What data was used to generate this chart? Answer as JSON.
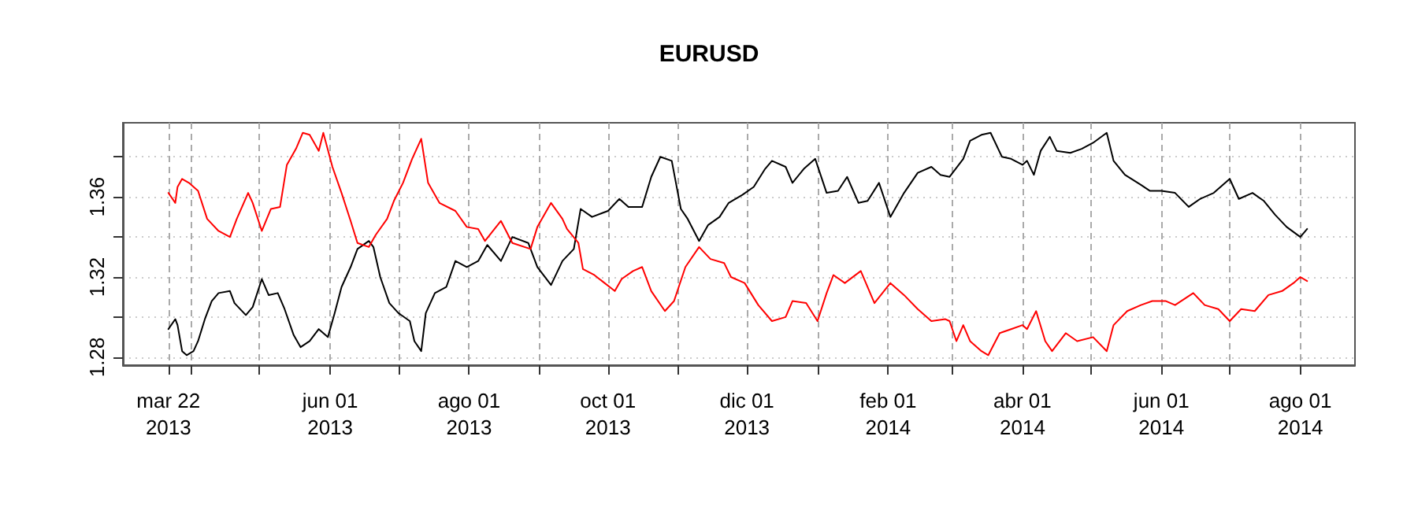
{
  "chart_data": {
    "type": "line",
    "title": "EURUSD",
    "xlim": [
      "2013-03-02",
      "2014-08-25"
    ],
    "xticks": [
      {
        "value": "2013-03-22",
        "label": "mar 22\n2013"
      },
      {
        "value": "2013-04-01",
        "label": null
      },
      {
        "value": "2013-05-01",
        "label": null
      },
      {
        "value": "2013-06-01",
        "label": "jun 01\n2013"
      },
      {
        "value": "2013-07-01",
        "label": null
      },
      {
        "value": "2013-08-01",
        "label": "ago 01\n2013"
      },
      {
        "value": "2013-09-01",
        "label": null
      },
      {
        "value": "2013-10-01",
        "label": "oct 01\n2013"
      },
      {
        "value": "2013-11-01",
        "label": null
      },
      {
        "value": "2013-12-01",
        "label": "dic 01\n2013"
      },
      {
        "value": "2014-01-01",
        "label": null
      },
      {
        "value": "2014-02-01",
        "label": "feb 01\n2014"
      },
      {
        "value": "2014-03-01",
        "label": null
      },
      {
        "value": "2014-04-01",
        "label": "abr 01\n2014"
      },
      {
        "value": "2014-05-01",
        "label": null
      },
      {
        "value": "2014-06-01",
        "label": "jun 01\n2014"
      },
      {
        "value": "2014-07-01",
        "label": null
      },
      {
        "value": "2014-08-01",
        "label": "ago 01\n2014"
      }
    ],
    "ylim": [
      1.276,
      1.397
    ],
    "yticks": [
      1.28,
      {
        "value": 1.3,
        "label": null
      },
      1.32,
      {
        "value": 1.34,
        "label": null
      },
      1.36,
      {
        "value": 1.38,
        "label": null
      }
    ],
    "grid": true,
    "line_style": "solid",
    "marker": "none",
    "series": [
      {
        "color": "#000000",
        "x": [
          "2013-03-22",
          "2013-03-25",
          "2013-03-26",
          "2013-03-28",
          "2013-03-30",
          "2013-04-02",
          "2013-04-04",
          "2013-04-07",
          "2013-04-10",
          "2013-04-13",
          "2013-04-18",
          "2013-04-20",
          "2013-04-25",
          "2013-04-28",
          "2013-05-02",
          "2013-05-05",
          "2013-05-09",
          "2013-05-12",
          "2013-05-16",
          "2013-05-19",
          "2013-05-23",
          "2013-05-27",
          "2013-05-31",
          "2013-06-03",
          "2013-06-06",
          "2013-06-10",
          "2013-06-13",
          "2013-06-18",
          "2013-06-20",
          "2013-06-23",
          "2013-06-27",
          "2013-07-01",
          "2013-07-06",
          "2013-07-08",
          "2013-07-11",
          "2013-07-13",
          "2013-07-17",
          "2013-07-22",
          "2013-07-26",
          "2013-07-31",
          "2013-08-05",
          "2013-08-09",
          "2013-08-15",
          "2013-08-20",
          "2013-08-27",
          "2013-08-31",
          "2013-09-06",
          "2013-09-11",
          "2013-09-16",
          "2013-09-19",
          "2013-09-24",
          "2013-10-01",
          "2013-10-06",
          "2013-10-10",
          "2013-10-16",
          "2013-10-20",
          "2013-10-24",
          "2013-10-29",
          "2013-11-02",
          "2013-11-05",
          "2013-11-10",
          "2013-11-14",
          "2013-11-19",
          "2013-11-23",
          "2013-11-29",
          "2013-12-04",
          "2013-12-09",
          "2013-12-12",
          "2013-12-18",
          "2013-12-21",
          "2013-12-26",
          "2013-12-31",
          "2014-01-05",
          "2014-01-10",
          "2014-01-14",
          "2014-01-19",
          "2014-01-23",
          "2014-01-28",
          "2014-02-02",
          "2014-02-08",
          "2014-02-14",
          "2014-02-20",
          "2014-02-24",
          "2014-02-28",
          "2014-03-06",
          "2014-03-09",
          "2014-03-14",
          "2014-03-18",
          "2014-03-23",
          "2014-03-27",
          "2014-04-01",
          "2014-04-03",
          "2014-04-06",
          "2014-04-09",
          "2014-04-13",
          "2014-04-16",
          "2014-04-22",
          "2014-04-27",
          "2014-05-02",
          "2014-05-08",
          "2014-05-11",
          "2014-05-16",
          "2014-05-23",
          "2014-05-27",
          "2014-06-01",
          "2014-06-07",
          "2014-06-13",
          "2014-06-18",
          "2014-06-24",
          "2014-07-01",
          "2014-07-05",
          "2014-07-11",
          "2014-07-16",
          "2014-07-21",
          "2014-07-26",
          "2014-08-01",
          "2014-08-04"
        ],
        "values": [
          1.294,
          1.299,
          1.296,
          1.283,
          1.281,
          1.283,
          1.288,
          1.299,
          1.308,
          1.312,
          1.313,
          1.307,
          1.301,
          1.305,
          1.319,
          1.311,
          1.312,
          1.304,
          1.291,
          1.285,
          1.288,
          1.294,
          1.29,
          1.302,
          1.315,
          1.325,
          1.334,
          1.338,
          1.335,
          1.32,
          1.307,
          1.302,
          1.298,
          1.288,
          1.283,
          1.302,
          1.312,
          1.315,
          1.328,
          1.325,
          1.328,
          1.336,
          1.328,
          1.34,
          1.337,
          1.325,
          1.316,
          1.328,
          1.334,
          1.354,
          1.35,
          1.353,
          1.359,
          1.355,
          1.355,
          1.37,
          1.38,
          1.378,
          1.354,
          1.349,
          1.338,
          1.346,
          1.35,
          1.357,
          1.361,
          1.365,
          1.374,
          1.378,
          1.375,
          1.367,
          1.374,
          1.379,
          1.362,
          1.363,
          1.37,
          1.357,
          1.358,
          1.367,
          1.35,
          1.362,
          1.372,
          1.375,
          1.371,
          1.37,
          1.379,
          1.388,
          1.391,
          1.392,
          1.38,
          1.379,
          1.376,
          1.378,
          1.371,
          1.383,
          1.39,
          1.383,
          1.382,
          1.384,
          1.387,
          1.392,
          1.378,
          1.371,
          1.366,
          1.363,
          1.363,
          1.362,
          1.355,
          1.359,
          1.362,
          1.369,
          1.359,
          1.362,
          1.358,
          1.351,
          1.345,
          1.34,
          1.344
        ]
      },
      {
        "color": "#ff0000",
        "x": [
          "2013-03-22",
          "2013-03-25",
          "2013-03-26",
          "2013-03-28",
          "2013-03-31",
          "2013-04-04",
          "2013-04-08",
          "2013-04-13",
          "2013-04-18",
          "2013-04-21",
          "2013-04-26",
          "2013-04-28",
          "2013-05-02",
          "2013-05-06",
          "2013-05-10",
          "2013-05-13",
          "2013-05-17",
          "2013-05-20",
          "2013-05-23",
          "2013-05-27",
          "2013-05-29",
          "2013-06-02",
          "2013-06-06",
          "2013-06-10",
          "2013-06-13",
          "2013-06-18",
          "2013-06-21",
          "2013-06-26",
          "2013-06-29",
          "2013-07-03",
          "2013-07-07",
          "2013-07-11",
          "2013-07-14",
          "2013-07-19",
          "2013-07-26",
          "2013-07-31",
          "2013-08-05",
          "2013-08-08",
          "2013-08-15",
          "2013-08-20",
          "2013-08-28",
          "2013-08-31",
          "2013-09-06",
          "2013-09-11",
          "2013-09-13",
          "2013-09-18",
          "2013-09-20",
          "2013-09-25",
          "2013-10-04",
          "2013-10-07",
          "2013-10-12",
          "2013-10-16",
          "2013-10-20",
          "2013-10-26",
          "2013-10-30",
          "2013-11-04",
          "2013-11-10",
          "2013-11-15",
          "2013-11-21",
          "2013-11-24",
          "2013-11-30",
          "2013-12-06",
          "2013-12-12",
          "2013-12-18",
          "2013-12-21",
          "2013-12-27",
          "2014-01-01",
          "2014-01-05",
          "2014-01-08",
          "2014-01-13",
          "2014-01-20",
          "2014-01-26",
          "2014-02-02",
          "2014-02-08",
          "2014-02-14",
          "2014-02-20",
          "2014-02-26",
          "2014-02-28",
          "2014-03-03",
          "2014-03-06",
          "2014-03-09",
          "2014-03-14",
          "2014-03-17",
          "2014-03-22",
          "2014-03-27",
          "2014-04-01",
          "2014-04-03",
          "2014-04-07",
          "2014-04-11",
          "2014-04-14",
          "2014-04-20",
          "2014-04-25",
          "2014-05-02",
          "2014-05-08",
          "2014-05-11",
          "2014-05-17",
          "2014-05-23",
          "2014-05-28",
          "2014-06-03",
          "2014-06-07",
          "2014-06-15",
          "2014-06-20",
          "2014-06-26",
          "2014-07-01",
          "2014-07-06",
          "2014-07-12",
          "2014-07-18",
          "2014-07-24",
          "2014-07-29",
          "2014-08-01",
          "2014-08-04"
        ],
        "values": [
          1.362,
          1.357,
          1.365,
          1.369,
          1.367,
          1.363,
          1.349,
          1.343,
          1.34,
          1.349,
          1.362,
          1.357,
          1.343,
          1.354,
          1.355,
          1.376,
          1.384,
          1.392,
          1.391,
          1.383,
          1.392,
          1.375,
          1.362,
          1.348,
          1.337,
          1.335,
          1.341,
          1.349,
          1.358,
          1.367,
          1.379,
          1.389,
          1.367,
          1.357,
          1.353,
          1.345,
          1.344,
          1.338,
          1.348,
          1.337,
          1.334,
          1.345,
          1.357,
          1.349,
          1.344,
          1.337,
          1.324,
          1.321,
          1.313,
          1.319,
          1.323,
          1.325,
          1.313,
          1.303,
          1.308,
          1.325,
          1.335,
          1.329,
          1.327,
          1.32,
          1.317,
          1.306,
          1.298,
          1.3,
          1.308,
          1.307,
          1.298,
          1.312,
          1.321,
          1.317,
          1.323,
          1.307,
          1.317,
          1.311,
          1.304,
          1.298,
          1.299,
          1.298,
          1.288,
          1.296,
          1.288,
          1.283,
          1.281,
          1.292,
          1.294,
          1.296,
          1.294,
          1.303,
          1.288,
          1.283,
          1.292,
          1.288,
          1.29,
          1.283,
          1.296,
          1.303,
          1.306,
          1.308,
          1.308,
          1.306,
          1.312,
          1.306,
          1.304,
          1.298,
          1.304,
          1.303,
          1.311,
          1.313,
          1.317,
          1.32,
          1.318
        ]
      }
    ]
  }
}
